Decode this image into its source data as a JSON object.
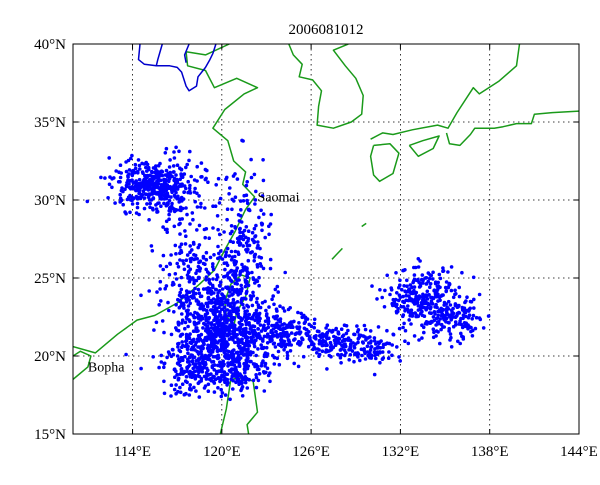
{
  "chart_data": {
    "type": "scatter",
    "title": "2006081012",
    "xlim": [
      110,
      144
    ],
    "ylim": [
      15,
      40
    ],
    "x_ticks": [
      114,
      120,
      126,
      132,
      138,
      144
    ],
    "x_tick_labels": [
      "114°E",
      "120°E",
      "126°E",
      "132°E",
      "138°E",
      "144°E"
    ],
    "y_ticks": [
      15,
      20,
      25,
      30,
      35,
      40
    ],
    "y_tick_labels": [
      "15°N",
      "20°N",
      "25°N",
      "30°N",
      "35°N",
      "40°N"
    ],
    "grid": true,
    "grid_style": "dotted",
    "point_color": "#0000ff",
    "coastline_color": "#1a9a1a",
    "border_color": "#0000cc",
    "annotations": [
      {
        "text": "Saomai",
        "x": 122.4,
        "y": 29.9
      },
      {
        "text": "Bopha",
        "x": 111.0,
        "y": 19.0
      }
    ],
    "series": [
      {
        "clusters": [
          {
            "cx": 115.6,
            "cy": 30.9,
            "sx": 1.5,
            "sy": 0.8,
            "n": 430
          },
          {
            "cx": 120.0,
            "cy": 21.2,
            "sx": 1.6,
            "sy": 1.3,
            "n": 650
          },
          {
            "cx": 121.3,
            "cy": 27.0,
            "sx": 0.9,
            "sy": 2.6,
            "n": 220
          },
          {
            "cx": 117.5,
            "cy": 26.5,
            "sx": 1.0,
            "sy": 2.5,
            "n": 130
          },
          {
            "cx": 119.6,
            "cy": 24.0,
            "sx": 1.6,
            "sy": 1.4,
            "n": 220
          },
          {
            "cx": 124.0,
            "cy": 21.4,
            "sx": 1.1,
            "sy": 0.8,
            "n": 170
          },
          {
            "cx": 127.5,
            "cy": 21.0,
            "sx": 1.3,
            "sy": 0.55,
            "n": 150
          },
          {
            "cx": 130.2,
            "cy": 20.5,
            "sx": 1.0,
            "sy": 0.5,
            "n": 90
          },
          {
            "cx": 133.4,
            "cy": 23.6,
            "sx": 1.1,
            "sy": 1.0,
            "n": 260
          },
          {
            "cx": 135.6,
            "cy": 22.4,
            "sx": 1.1,
            "sy": 0.8,
            "n": 140
          },
          {
            "cx": 118.3,
            "cy": 18.9,
            "sx": 1.3,
            "sy": 0.7,
            "n": 150
          },
          {
            "cx": 121.2,
            "cy": 19.1,
            "sx": 0.9,
            "sy": 0.6,
            "n": 100
          }
        ]
      }
    ],
    "coastlines": [
      [
        [
          110,
          20.6
        ],
        [
          111.5,
          20.2
        ],
        [
          113,
          21.4
        ],
        [
          114.3,
          22.3
        ],
        [
          115.5,
          22.6
        ],
        [
          117,
          23.4
        ],
        [
          118.5,
          24.6
        ],
        [
          119.5,
          25.5
        ],
        [
          120.2,
          26.8
        ],
        [
          120.9,
          28.0
        ],
        [
          121.6,
          29.4
        ],
        [
          122.2,
          30.2
        ],
        [
          121.4,
          31.0
        ],
        [
          121.6,
          31.8
        ],
        [
          120.8,
          32.5
        ],
        [
          120.4,
          33.8
        ],
        [
          119.4,
          34.6
        ],
        [
          120.2,
          35.8
        ],
        [
          121.5,
          36.8
        ],
        [
          122.4,
          37.2
        ],
        [
          121.0,
          37.8
        ],
        [
          119.5,
          37.2
        ],
        [
          118.9,
          38.3
        ],
        [
          117.7,
          38.6
        ],
        [
          117.6,
          39.5
        ],
        [
          118.9,
          39.3
        ],
        [
          120.5,
          40.0
        ]
      ],
      [
        [
          120.3,
          22.6
        ],
        [
          120.2,
          23.5
        ],
        [
          120.6,
          24.6
        ],
        [
          121.3,
          25.2
        ],
        [
          121.9,
          25.0
        ],
        [
          121.6,
          23.8
        ],
        [
          121.0,
          22.8
        ],
        [
          120.8,
          21.9
        ],
        [
          120.3,
          22.6
        ]
      ],
      [
        [
          110,
          18.5
        ],
        [
          111.0,
          19.3
        ],
        [
          111.2,
          20.0
        ],
        [
          110.5,
          20.3
        ],
        [
          110,
          20.0
        ]
      ],
      [
        [
          119.9,
          15.0
        ],
        [
          120.3,
          16.6
        ],
        [
          120.6,
          18.5
        ],
        [
          121.3,
          18.6
        ],
        [
          122.1,
          18.4
        ],
        [
          122.4,
          16.4
        ],
        [
          121.7,
          15.6
        ],
        [
          121.8,
          15.0
        ]
      ],
      [
        [
          124.5,
          40.0
        ],
        [
          124.8,
          39.3
        ],
        [
          125.4,
          38.7
        ],
        [
          125.2,
          37.9
        ],
        [
          126.1,
          37.7
        ],
        [
          126.7,
          37.0
        ],
        [
          126.5,
          36.0
        ],
        [
          126.4,
          34.8
        ],
        [
          127.5,
          34.6
        ],
        [
          128.7,
          35.0
        ],
        [
          129.4,
          35.5
        ],
        [
          129.5,
          36.7
        ],
        [
          129.0,
          37.8
        ],
        [
          128.3,
          38.6
        ],
        [
          127.5,
          39.6
        ],
        [
          128.5,
          40.0
        ]
      ],
      [
        [
          130.0,
          33.9
        ],
        [
          130.8,
          34.3
        ],
        [
          131.5,
          34.2
        ],
        [
          132.8,
          34.5
        ],
        [
          134.5,
          34.8
        ],
        [
          135.2,
          34.6
        ],
        [
          135.8,
          35.6
        ],
        [
          136.9,
          37.2
        ],
        [
          137.3,
          36.8
        ],
        [
          138.6,
          37.6
        ],
        [
          139.8,
          38.6
        ],
        [
          140.0,
          40.0
        ]
      ],
      [
        [
          130.2,
          33.5
        ],
        [
          131.3,
          33.6
        ],
        [
          131.9,
          33.0
        ],
        [
          131.5,
          31.7
        ],
        [
          130.6,
          31.2
        ],
        [
          130.2,
          31.6
        ],
        [
          130.0,
          32.8
        ],
        [
          130.2,
          33.5
        ]
      ],
      [
        [
          132.6,
          33.5
        ],
        [
          133.5,
          33.8
        ],
        [
          134.6,
          34.1
        ],
        [
          134.2,
          33.3
        ],
        [
          133.2,
          32.8
        ],
        [
          132.6,
          33.5
        ]
      ],
      [
        [
          144.0,
          35.7
        ],
        [
          142.2,
          35.6
        ],
        [
          141.0,
          35.5
        ],
        [
          140.8,
          34.9
        ],
        [
          139.8,
          34.9
        ],
        [
          138.9,
          34.7
        ],
        [
          138.3,
          34.6
        ],
        [
          137.0,
          34.6
        ],
        [
          136.7,
          34.2
        ],
        [
          136.0,
          33.5
        ],
        [
          135.3,
          33.6
        ],
        [
          135.1,
          34.3
        ]
      ],
      [
        [
          127.4,
          26.2
        ],
        [
          127.7,
          26.5
        ],
        [
          128.1,
          26.9
        ]
      ],
      [
        [
          129.4,
          28.3
        ],
        [
          129.7,
          28.5
        ]
      ]
    ],
    "borders": [
      [
        [
          116.0,
          40.0
        ],
        [
          115.7,
          39.0
        ],
        [
          115.6,
          38.6
        ],
        [
          116.5,
          38.6
        ],
        [
          117.0,
          38.5
        ],
        [
          117.3,
          38.2
        ],
        [
          117.6,
          37.3
        ],
        [
          117.8,
          37.0
        ],
        [
          118.3,
          37.3
        ],
        [
          118.4,
          37.9
        ],
        [
          118.9,
          38.5
        ],
        [
          119.2,
          39.0
        ],
        [
          119.4,
          39.4
        ],
        [
          119.6,
          40.0
        ]
      ],
      [
        [
          114.5,
          40.0
        ],
        [
          114.4,
          39.0
        ],
        [
          114.8,
          38.7
        ],
        [
          115.6,
          38.6
        ]
      ],
      [
        [
          117.8,
          40.0
        ],
        [
          117.5,
          39.3
        ],
        [
          117.6,
          38.8
        ]
      ]
    ]
  }
}
